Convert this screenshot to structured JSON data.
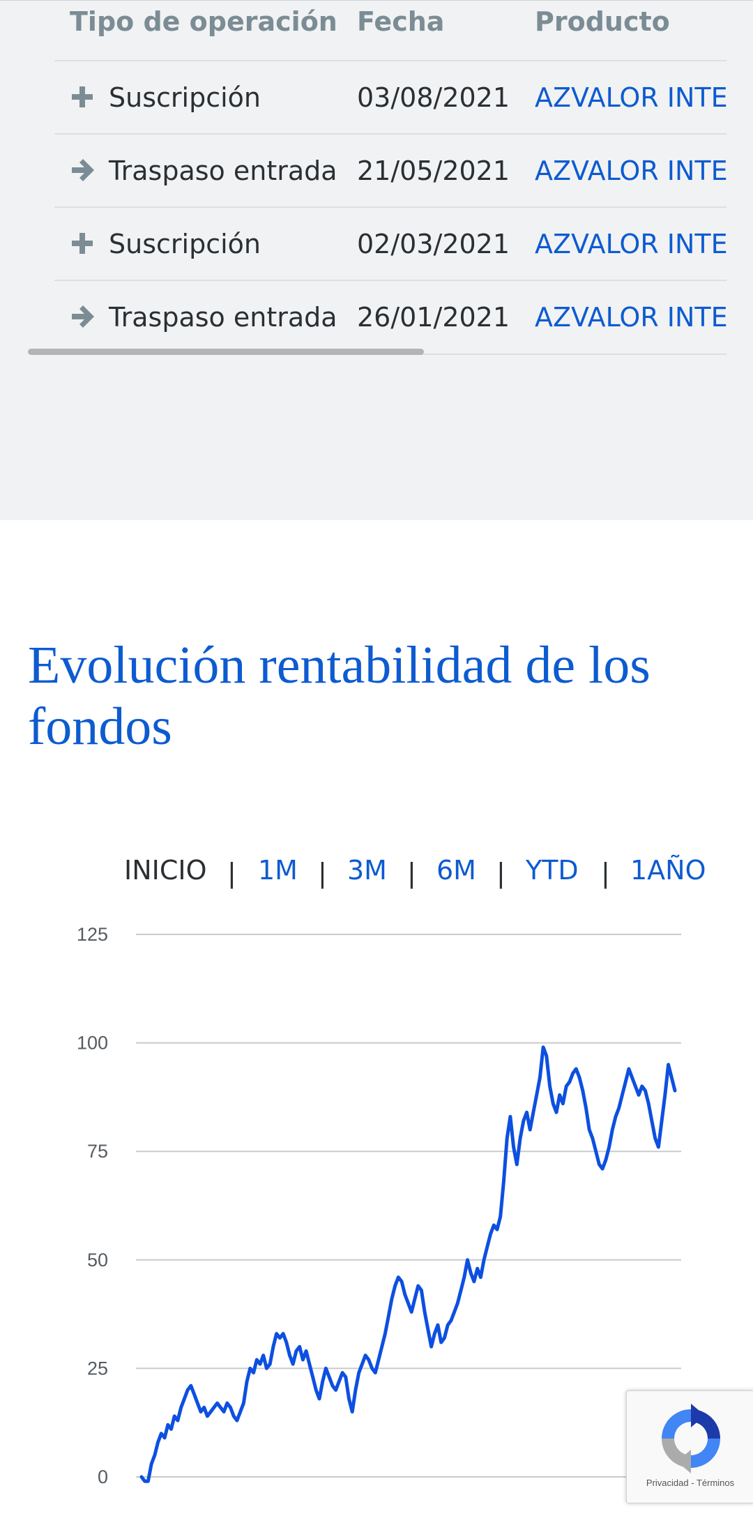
{
  "operations": {
    "headers": {
      "type": "Tipo de operación",
      "date": "Fecha",
      "product": "Producto"
    },
    "rows": [
      {
        "icon": "plus-icon",
        "type": "Suscripción",
        "date": "03/08/2021",
        "product": "AZVALOR INTERNACIONAL"
      },
      {
        "icon": "arrow-right-icon",
        "type": "Traspaso entrada",
        "date": "21/05/2021",
        "product": "AZVALOR INTERNACIONAL"
      },
      {
        "icon": "plus-icon",
        "type": "Suscripción",
        "date": "02/03/2021",
        "product": "AZVALOR INTERNACIONAL"
      },
      {
        "icon": "arrow-right-icon",
        "type": "Traspaso entrada",
        "date": "26/01/2021",
        "product": "AZVALOR INTERNACIONAL"
      }
    ],
    "scroll_fraction_visible": 0.42
  },
  "evolution": {
    "title": "Evolución rentabilidad de los fondos",
    "ranges": [
      {
        "label": "INICIO",
        "active": true
      },
      {
        "label": "1M",
        "active": false
      },
      {
        "label": "3M",
        "active": false
      },
      {
        "label": "6M",
        "active": false
      },
      {
        "label": "YTD",
        "active": false
      },
      {
        "label": "1AÑO",
        "active": false
      }
    ],
    "separator": "|"
  },
  "chart_data": {
    "type": "line",
    "title": "",
    "xlabel": "",
    "ylabel": "",
    "ylim": [
      0,
      125
    ],
    "yticks": [
      "0",
      "25",
      "50",
      "75",
      "100",
      "125"
    ],
    "grid": true,
    "color": "#0d4fe0",
    "series": [
      {
        "values": [
          0,
          -1,
          -1,
          3,
          5,
          8,
          10,
          9,
          12,
          11,
          14,
          13,
          16,
          18,
          20,
          21,
          19,
          17,
          15,
          16,
          14,
          15,
          16,
          17,
          16,
          15,
          17,
          16,
          14,
          13,
          15,
          17,
          22,
          25,
          24,
          27,
          26,
          28,
          25,
          26,
          30,
          33,
          32,
          33,
          31,
          28,
          26,
          29,
          30,
          27,
          29,
          26,
          23,
          20,
          18,
          22,
          25,
          23,
          21,
          20,
          22,
          24,
          23,
          18,
          15,
          20,
          24,
          26,
          28,
          27,
          25,
          24,
          27,
          30,
          33,
          37,
          41,
          44,
          46,
          45,
          42,
          40,
          38,
          41,
          44,
          43,
          38,
          34,
          30,
          33,
          35,
          31,
          32,
          35,
          36,
          38,
          40,
          43,
          46,
          50,
          47,
          45,
          48,
          46,
          50,
          53,
          56,
          58,
          57,
          60,
          68,
          78,
          83,
          76,
          72,
          78,
          82,
          84,
          80,
          84,
          88,
          92,
          99,
          97,
          90,
          86,
          84,
          88,
          86,
          90,
          91,
          93,
          94,
          92,
          89,
          85,
          80,
          78,
          75,
          72,
          71,
          73,
          76,
          80,
          83,
          85,
          88,
          91,
          94,
          92,
          90,
          88,
          90,
          89,
          86,
          82,
          78,
          76,
          82,
          88,
          95,
          92,
          89
        ],
        "x_start_index": 0
      }
    ]
  },
  "recaptcha": {
    "privacy": "Privacidad",
    "dash": "-",
    "terms": "Términos"
  }
}
